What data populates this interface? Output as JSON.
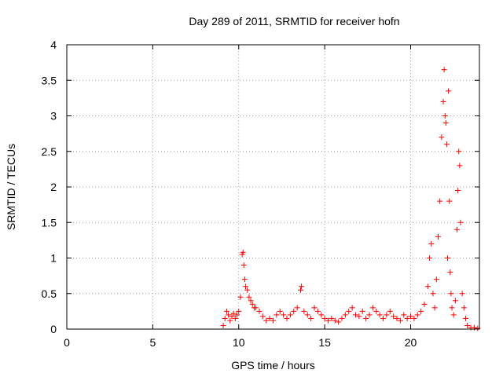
{
  "chart_data": {
    "type": "scatter",
    "title": "Day 289 of 2011, SRMTID for receiver hofn",
    "xlabel": "GPS time / hours",
    "ylabel": "SRMTID / TECUs",
    "xlim": [
      0,
      24
    ],
    "ylim": [
      0,
      4
    ],
    "xticks": [
      0,
      5,
      10,
      15,
      20
    ],
    "xtick_labels": [
      "0",
      "5",
      "10",
      "15",
      "20"
    ],
    "yticks": [
      0,
      0.5,
      1,
      1.5,
      2,
      2.5,
      3,
      3.5,
      4
    ],
    "ytick_labels": [
      "0",
      "0.5",
      "1",
      "1.5",
      "2",
      "2.5",
      "3",
      "3.5",
      "4"
    ],
    "grid": true,
    "marker": "+",
    "marker_color": "#ff0000",
    "series": [
      {
        "name": "SRMTID",
        "x": [
          9.1,
          9.2,
          9.3,
          9.4,
          9.5,
          9.6,
          9.7,
          9.8,
          9.9,
          10.0,
          10.1,
          10.2,
          10.25,
          10.3,
          10.35,
          10.4,
          10.5,
          10.6,
          10.7,
          10.8,
          10.9,
          11.0,
          11.2,
          11.4,
          11.6,
          11.8,
          12.0,
          12.2,
          12.4,
          12.6,
          12.8,
          13.0,
          13.2,
          13.4,
          13.6,
          13.65,
          13.8,
          14.0,
          14.2,
          14.4,
          14.6,
          14.8,
          15.0,
          15.2,
          15.4,
          15.6,
          15.8,
          16.0,
          16.2,
          16.4,
          16.6,
          16.8,
          17.0,
          17.2,
          17.4,
          17.6,
          17.8,
          18.0,
          18.2,
          18.4,
          18.6,
          18.8,
          19.0,
          19.2,
          19.4,
          19.6,
          19.8,
          20.0,
          20.2,
          20.4,
          20.6,
          20.8,
          21.0,
          21.1,
          21.2,
          21.3,
          21.4,
          21.5,
          21.6,
          21.7,
          21.8,
          21.9,
          21.95,
          22.0,
          22.05,
          22.1,
          22.15,
          22.2,
          22.25,
          22.3,
          22.35,
          22.4,
          22.5,
          22.6,
          22.7,
          22.75,
          22.8,
          22.85,
          22.9,
          23.0,
          23.1,
          23.2,
          23.3,
          23.5,
          23.7,
          23.9
        ],
        "y": [
          0.05,
          0.15,
          0.25,
          0.2,
          0.12,
          0.18,
          0.22,
          0.15,
          0.2,
          0.25,
          0.45,
          1.05,
          1.08,
          0.9,
          0.7,
          0.6,
          0.55,
          0.45,
          0.4,
          0.35,
          0.3,
          0.3,
          0.25,
          0.18,
          0.12,
          0.15,
          0.12,
          0.2,
          0.25,
          0.2,
          0.15,
          0.2,
          0.25,
          0.3,
          0.55,
          0.6,
          0.25,
          0.2,
          0.15,
          0.3,
          0.25,
          0.2,
          0.15,
          0.12,
          0.15,
          0.12,
          0.1,
          0.15,
          0.2,
          0.25,
          0.3,
          0.2,
          0.18,
          0.25,
          0.15,
          0.2,
          0.3,
          0.25,
          0.2,
          0.15,
          0.2,
          0.25,
          0.18,
          0.15,
          0.12,
          0.2,
          0.15,
          0.18,
          0.15,
          0.2,
          0.25,
          0.35,
          0.6,
          1.0,
          1.2,
          0.5,
          0.3,
          0.7,
          1.3,
          1.8,
          2.7,
          3.2,
          3.65,
          3.0,
          2.9,
          2.6,
          1.0,
          3.35,
          1.8,
          0.8,
          0.5,
          0.3,
          0.2,
          0.4,
          1.4,
          1.95,
          2.5,
          2.3,
          1.5,
          0.5,
          0.3,
          0.15,
          0.05,
          0.02,
          0.02,
          0.01
        ]
      }
    ]
  }
}
